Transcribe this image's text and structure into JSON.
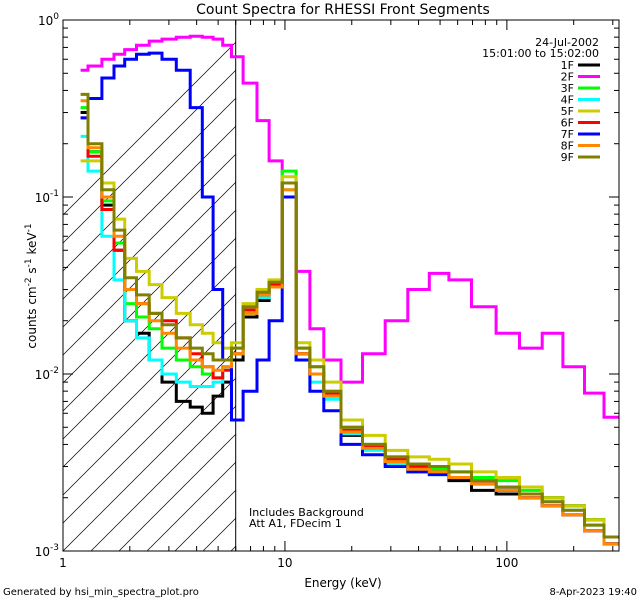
{
  "chart_data": {
    "type": "line",
    "title": "Count Spectra for RHESSI Front Segments",
    "xlabel": "Energy (keV)",
    "ylabel_parts": [
      "counts cm",
      "-2",
      " s",
      "-1",
      " keV",
      "-1"
    ],
    "x_scale": "log",
    "y_scale": "log",
    "xlim": [
      1,
      320
    ],
    "ylim": [
      0.001,
      1
    ],
    "x_ticks": [
      {
        "v": 1,
        "label": "1"
      },
      {
        "v": 10,
        "label": "10"
      },
      {
        "v": 100,
        "label": "100"
      }
    ],
    "y_ticks": [
      {
        "v": 1,
        "base": "10",
        "exp": "0"
      },
      {
        "v": 0.1,
        "base": "10",
        "exp": "-1"
      },
      {
        "v": 0.01,
        "base": "10",
        "exp": "-2"
      },
      {
        "v": 0.001,
        "base": "10",
        "exp": "-3"
      }
    ],
    "attenuated_region": {
      "xmin": 1,
      "xmax": 6
    },
    "date": "24-Jul-2002",
    "time_range": "15:01:00 to 15:02:00",
    "annotations": [
      "Includes Background",
      "Att A1, FDecim 1"
    ],
    "series": [
      {
        "name": "1F",
        "color": "#000000",
        "x": [
          1.2,
          1.4,
          1.6,
          1.8,
          2.0,
          2.3,
          2.6,
          3.0,
          3.5,
          4.0,
          4.5,
          5.0,
          5.5,
          6.0,
          7.0,
          8.0,
          9.0,
          10.5,
          12.0,
          14.0,
          16.0,
          20.0,
          25.0,
          32.0,
          40.0,
          50.0,
          60.0,
          80.0,
          100.0,
          130.0,
          160.0,
          200.0,
          250.0,
          300.0
        ],
        "y": [
          0.3,
          0.18,
          0.09,
          0.05,
          0.02,
          0.017,
          0.012,
          0.009,
          0.007,
          0.0065,
          0.006,
          0.0075,
          0.009,
          0.012,
          0.021,
          0.026,
          0.032,
          0.12,
          0.013,
          0.01,
          0.0078,
          0.0045,
          0.0038,
          0.0032,
          0.0029,
          0.0028,
          0.0025,
          0.0022,
          0.0021,
          0.0021,
          0.002,
          0.0018,
          0.0015,
          0.0012
        ]
      },
      {
        "name": "2F",
        "color": "#ff00ff",
        "x": [
          1.2,
          1.4,
          1.6,
          1.8,
          2.0,
          2.3,
          2.6,
          3.0,
          3.5,
          4.0,
          4.5,
          5.0,
          5.5,
          6.0,
          7.0,
          8.0,
          9.0,
          10.5,
          12.0,
          14.0,
          16.0,
          20.0,
          25.0,
          32.0,
          40.0,
          50.0,
          60.0,
          80.0,
          100.0,
          130.0,
          160.0,
          200.0,
          250.0,
          300.0
        ],
        "y": [
          0.52,
          0.55,
          0.6,
          0.64,
          0.68,
          0.72,
          0.76,
          0.78,
          0.8,
          0.81,
          0.8,
          0.78,
          0.72,
          0.62,
          0.44,
          0.27,
          0.16,
          0.12,
          0.038,
          0.018,
          0.012,
          0.009,
          0.013,
          0.02,
          0.03,
          0.037,
          0.034,
          0.024,
          0.017,
          0.014,
          0.017,
          0.011,
          0.0078,
          0.0057
        ]
      },
      {
        "name": "3F",
        "color": "#00ff00",
        "x": [
          1.2,
          1.4,
          1.6,
          1.8,
          2.0,
          2.3,
          2.6,
          3.0,
          3.5,
          4.0,
          4.5,
          5.0,
          5.5,
          6.0,
          7.0,
          8.0,
          9.0,
          10.5,
          12.0,
          14.0,
          16.0,
          20.0,
          25.0,
          32.0,
          40.0,
          50.0,
          60.0,
          80.0,
          100.0,
          130.0,
          160.0,
          200.0,
          250.0,
          300.0
        ],
        "y": [
          0.32,
          0.18,
          0.095,
          0.055,
          0.025,
          0.021,
          0.018,
          0.014,
          0.012,
          0.011,
          0.01,
          0.0095,
          0.011,
          0.014,
          0.024,
          0.029,
          0.033,
          0.14,
          0.014,
          0.011,
          0.008,
          0.005,
          0.004,
          0.0034,
          0.003,
          0.0029,
          0.0028,
          0.0026,
          0.0025,
          0.0022,
          0.002,
          0.0018,
          0.0015,
          0.0012
        ]
      },
      {
        "name": "4F",
        "color": "#00ffff",
        "x": [
          1.2,
          1.4,
          1.6,
          1.8,
          2.0,
          2.3,
          2.6,
          3.0,
          3.5,
          4.0,
          4.5,
          5.0,
          5.5,
          6.0,
          7.0,
          8.0,
          9.0,
          10.5,
          12.0,
          14.0,
          16.0,
          20.0,
          25.0,
          32.0,
          40.0,
          50.0,
          60.0,
          80.0,
          100.0,
          130.0,
          160.0,
          200.0,
          250.0,
          300.0
        ],
        "y": [
          0.22,
          0.14,
          0.06,
          0.034,
          0.02,
          0.016,
          0.012,
          0.01,
          0.009,
          0.0085,
          0.0085,
          0.009,
          0.011,
          0.013,
          0.022,
          0.027,
          0.031,
          0.11,
          0.012,
          0.009,
          0.0072,
          0.0046,
          0.0037,
          0.0031,
          0.0028,
          0.0027,
          0.0026,
          0.0024,
          0.0022,
          0.0021,
          0.0019,
          0.0017,
          0.0014,
          0.0011
        ]
      },
      {
        "name": "5F",
        "color": "#cccc00",
        "x": [
          1.2,
          1.4,
          1.6,
          1.8,
          2.0,
          2.3,
          2.6,
          3.0,
          3.5,
          4.0,
          4.5,
          5.0,
          5.5,
          6.0,
          7.0,
          8.0,
          9.0,
          10.5,
          12.0,
          14.0,
          16.0,
          20.0,
          25.0,
          32.0,
          40.0,
          50.0,
          60.0,
          80.0,
          100.0,
          130.0,
          160.0,
          200.0,
          250.0,
          300.0
        ],
        "y": [
          0.16,
          0.16,
          0.12,
          0.075,
          0.045,
          0.038,
          0.032,
          0.027,
          0.022,
          0.019,
          0.017,
          0.015,
          0.014,
          0.015,
          0.025,
          0.03,
          0.034,
          0.13,
          0.015,
          0.012,
          0.009,
          0.0055,
          0.0045,
          0.0037,
          0.0034,
          0.0033,
          0.0031,
          0.0028,
          0.0026,
          0.0023,
          0.002,
          0.0018,
          0.0015,
          0.0012
        ]
      },
      {
        "name": "6F",
        "color": "#ff0000",
        "x": [
          1.2,
          1.4,
          1.6,
          1.8,
          2.0,
          2.3,
          2.6,
          3.0,
          3.5,
          4.0,
          4.5,
          5.0,
          5.5,
          6.0,
          7.0,
          8.0,
          9.0,
          10.5,
          12.0,
          14.0,
          16.0,
          20.0,
          25.0,
          32.0,
          40.0,
          50.0,
          60.0,
          80.0,
          100.0,
          130.0,
          160.0,
          200.0,
          250.0,
          300.0
        ],
        "y": [
          0.28,
          0.17,
          0.085,
          0.05,
          0.03,
          0.025,
          0.022,
          0.02,
          0.016,
          0.013,
          0.011,
          0.0095,
          0.0105,
          0.013,
          0.023,
          0.028,
          0.032,
          0.12,
          0.013,
          0.01,
          0.0078,
          0.0048,
          0.0039,
          0.0033,
          0.003,
          0.0028,
          0.0026,
          0.0024,
          0.0022,
          0.002,
          0.0018,
          0.0016,
          0.0013,
          0.0011
        ]
      },
      {
        "name": "7F",
        "color": "#0000ff",
        "x": [
          1.2,
          1.4,
          1.6,
          1.8,
          2.0,
          2.3,
          2.6,
          3.0,
          3.5,
          4.0,
          4.5,
          5.0,
          5.5,
          6.0,
          7.0,
          8.0,
          9.0,
          10.5,
          12.0,
          14.0,
          16.0,
          20.0,
          25.0,
          32.0,
          40.0,
          50.0,
          60.0,
          80.0,
          100.0,
          130.0,
          160.0,
          200.0,
          250.0,
          300.0
        ],
        "y": [
          0.28,
          0.36,
          0.47,
          0.55,
          0.6,
          0.64,
          0.65,
          0.6,
          0.52,
          0.32,
          0.1,
          0.03,
          0.012,
          0.0055,
          0.008,
          0.012,
          0.02,
          0.1,
          0.012,
          0.008,
          0.0062,
          0.004,
          0.0035,
          0.003,
          0.0028,
          0.0027,
          0.0026,
          0.0024,
          0.0022,
          0.002,
          0.0018,
          0.0016,
          0.0013,
          0.0011
        ]
      },
      {
        "name": "8F",
        "color": "#ff8800",
        "x": [
          1.2,
          1.4,
          1.6,
          1.8,
          2.0,
          2.3,
          2.6,
          3.0,
          3.5,
          4.0,
          4.5,
          5.0,
          5.5,
          6.0,
          7.0,
          8.0,
          9.0,
          10.5,
          12.0,
          14.0,
          16.0,
          20.0,
          25.0,
          32.0,
          40.0,
          50.0,
          60.0,
          80.0,
          100.0,
          130.0,
          160.0,
          200.0,
          250.0,
          300.0
        ],
        "y": [
          0.35,
          0.19,
          0.1,
          0.06,
          0.03,
          0.025,
          0.02,
          0.017,
          0.014,
          0.012,
          0.011,
          0.0105,
          0.011,
          0.013,
          0.022,
          0.028,
          0.031,
          0.11,
          0.013,
          0.01,
          0.0075,
          0.0047,
          0.0038,
          0.0032,
          0.0029,
          0.0028,
          0.0026,
          0.0024,
          0.0022,
          0.002,
          0.0018,
          0.0016,
          0.0013,
          0.0011
        ]
      },
      {
        "name": "9F",
        "color": "#808000",
        "x": [
          1.2,
          1.4,
          1.6,
          1.8,
          2.0,
          2.3,
          2.6,
          3.0,
          3.5,
          4.0,
          4.5,
          5.0,
          5.5,
          6.0,
          7.0,
          8.0,
          9.0,
          10.5,
          12.0,
          14.0,
          16.0,
          20.0,
          25.0,
          32.0,
          40.0,
          50.0,
          60.0,
          80.0,
          100.0,
          130.0,
          160.0,
          200.0,
          250.0,
          300.0
        ],
        "y": [
          0.38,
          0.2,
          0.11,
          0.065,
          0.035,
          0.028,
          0.022,
          0.019,
          0.016,
          0.014,
          0.013,
          0.012,
          0.012,
          0.014,
          0.024,
          0.029,
          0.033,
          0.12,
          0.014,
          0.011,
          0.008,
          0.005,
          0.004,
          0.0034,
          0.0031,
          0.003,
          0.0028,
          0.0025,
          0.0023,
          0.0021,
          0.0019,
          0.0017,
          0.0014,
          0.0012
        ]
      }
    ]
  },
  "footer": {
    "generated_by": "Generated by hsi_min_spectra_plot.pro",
    "timestamp": "8-Apr-2023 19:40"
  }
}
